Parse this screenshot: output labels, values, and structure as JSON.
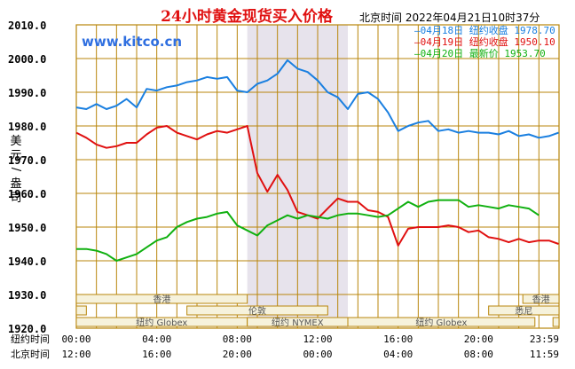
{
  "chart_data": {
    "type": "line",
    "title": "24小时黄金现货买入价格",
    "watermark": "www.kitco.cn",
    "timestamp": "北京时间  2022年04月21日10时37分",
    "ylabel": "美元/盎司",
    "ylim": [
      1920,
      2010
    ],
    "yticks": [
      "2010.0",
      "2000.0",
      "1990.0",
      "1980.0",
      "1970.0",
      "1960.0",
      "1950.0",
      "1940.0",
      "1930.0",
      "1920.0"
    ],
    "grid": true,
    "legend_position": "top-right",
    "legend": [
      {
        "label": "—04月18日  纽约收盘 1978.70",
        "color": "#1a7fe0"
      },
      {
        "label": "—04月19日  纽约收盘 1950.10",
        "color": "#e01010"
      },
      {
        "label": "—04月20日    最新价 1953.70",
        "color": "#10b010"
      }
    ],
    "x_row1_label": "纽约时间",
    "x_row1_ticks": [
      "00:00",
      "04:00",
      "08:00",
      "12:00",
      "16:00",
      "20:00",
      "23:59"
    ],
    "x_row2_label": "北京时间",
    "x_row2_ticks": [
      "12:00",
      "16:00",
      "20:00",
      "00:00",
      "04:00",
      "08:00",
      "11:59"
    ],
    "markets": [
      "香港",
      "伦敦",
      "纽约 Globex",
      "纽约 NYMEX",
      "纽约 Globex",
      "悉尼",
      "香港"
    ],
    "series": [
      {
        "color": "#1a7fe0",
        "x": [
          0,
          0.5,
          1,
          1.5,
          2,
          2.5,
          3,
          3.5,
          4,
          4.5,
          5,
          5.5,
          6,
          6.5,
          7,
          7.5,
          8,
          8.5,
          9,
          9.5,
          10,
          10.5,
          11,
          11.5,
          12,
          12.5,
          13,
          13.5,
          14,
          14.5,
          15,
          15.5,
          16,
          16.5,
          17,
          17.5,
          18,
          18.5,
          19,
          19.5,
          20,
          20.5,
          21,
          21.5,
          22,
          22.5,
          23,
          23.5,
          23.98
        ],
        "y": [
          1985.5,
          1985.0,
          1986.5,
          1985.0,
          1986.0,
          1988.0,
          1985.5,
          1991.0,
          1990.5,
          1991.5,
          1992.0,
          1993.0,
          1993.5,
          1994.5,
          1994.0,
          1994.5,
          1990.5,
          1990.0,
          1992.5,
          1993.5,
          1995.5,
          1999.5,
          1997.0,
          1996.0,
          1993.5,
          1990.0,
          1988.5,
          1985.0,
          1989.5,
          1990.0,
          1988.0,
          1984.0,
          1978.5,
          1980.0,
          1981.0,
          1981.5,
          1978.5,
          1979.0,
          1978.0,
          1978.5,
          1978.0,
          1978.0,
          1977.5,
          1978.5,
          1977.0,
          1977.5,
          1976.5,
          1977.0,
          1978.0
        ]
      },
      {
        "color": "#e01010",
        "x": [
          0,
          0.5,
          1,
          1.5,
          2,
          2.5,
          3,
          3.5,
          4,
          4.5,
          5,
          5.5,
          6,
          6.5,
          7,
          7.5,
          8,
          8.5,
          9,
          9.5,
          10,
          10.5,
          11,
          11.5,
          12,
          12.5,
          13,
          13.5,
          14,
          14.5,
          15,
          15.5,
          16,
          16.5,
          17,
          17.5,
          18,
          18.5,
          19,
          19.5,
          20,
          20.5,
          21,
          21.5,
          22,
          22.5,
          23,
          23.5,
          23.98
        ],
        "y": [
          1978.0,
          1976.5,
          1974.5,
          1973.5,
          1974.0,
          1975.0,
          1975.0,
          1977.5,
          1979.5,
          1980.0,
          1978.0,
          1977.0,
          1976.0,
          1977.5,
          1978.5,
          1978.0,
          1979.0,
          1980.0,
          1966.0,
          1960.5,
          1965.5,
          1961.0,
          1954.5,
          1953.5,
          1952.5,
          1955.5,
          1958.5,
          1957.5,
          1957.5,
          1955.0,
          1954.5,
          1953.0,
          1944.5,
          1949.5,
          1950.0,
          1950.0,
          1950.0,
          1950.5,
          1950.0,
          1948.5,
          1949.0,
          1947.0,
          1946.5,
          1945.5,
          1946.5,
          1945.5,
          1946.0,
          1946.0,
          1945.0
        ]
      },
      {
        "color": "#10b010",
        "x": [
          0,
          0.5,
          1,
          1.5,
          2,
          2.5,
          3,
          3.5,
          4,
          4.5,
          5,
          5.5,
          6,
          6.5,
          7,
          7.5,
          8,
          8.5,
          9,
          9.5,
          10,
          10.5,
          11,
          11.5,
          12,
          12.5,
          13,
          13.5,
          14,
          14.5,
          15,
          15.5,
          16,
          16.5,
          17,
          17.5,
          18,
          18.5,
          19,
          19.5,
          20,
          20.5,
          21,
          21.5,
          22,
          22.5,
          23
        ],
        "y": [
          1943.5,
          1943.5,
          1943.0,
          1942.0,
          1940.0,
          1941.0,
          1942.0,
          1944.0,
          1946.0,
          1947.0,
          1950.0,
          1951.5,
          1952.5,
          1953.0,
          1954.0,
          1954.5,
          1950.5,
          1949.0,
          1947.5,
          1950.5,
          1952.0,
          1953.5,
          1952.5,
          1953.5,
          1953.0,
          1952.5,
          1953.5,
          1954.0,
          1954.0,
          1953.5,
          1953.0,
          1953.5,
          1955.5,
          1957.5,
          1956.0,
          1957.5,
          1958.0,
          1958.0,
          1958.0,
          1956.0,
          1956.5,
          1956.0,
          1955.5,
          1956.5,
          1956.0,
          1955.5,
          1953.5
        ]
      }
    ]
  }
}
